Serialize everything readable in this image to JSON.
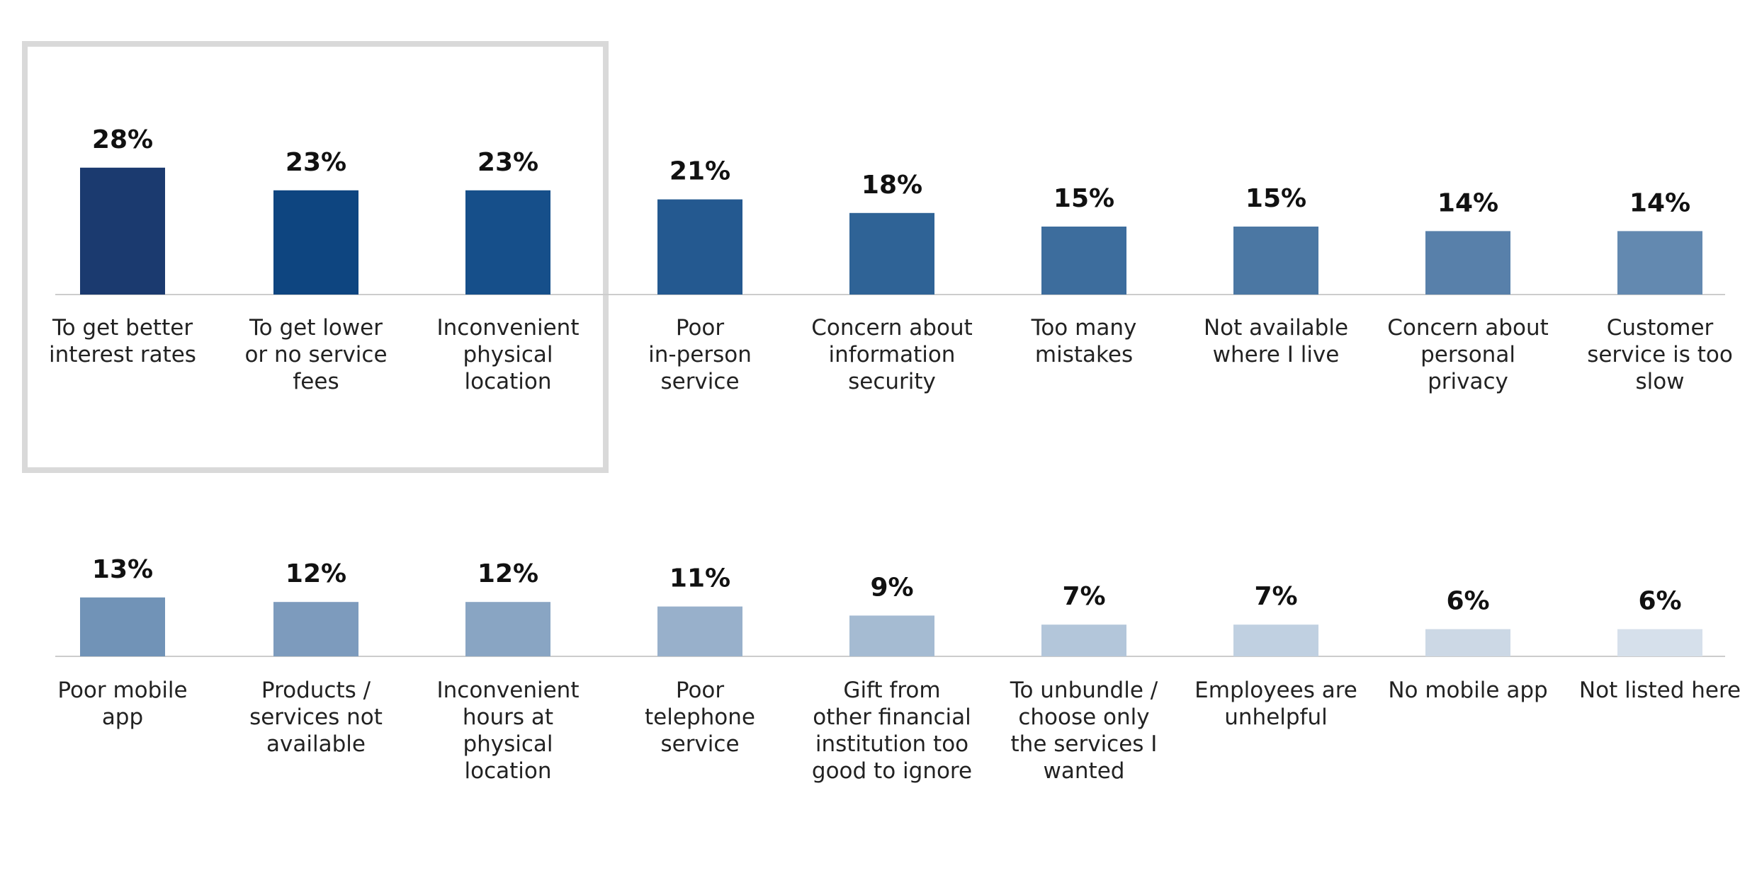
{
  "chart_data": [
    {
      "type": "bar",
      "categories": [
        [
          "To get better",
          "interest rates"
        ],
        [
          "To get lower",
          "or no service",
          "fees"
        ],
        [
          "Inconvenient",
          "physical",
          "location"
        ],
        [
          "Poor",
          "in-person",
          "service"
        ],
        [
          "Concern about",
          "information",
          "security"
        ],
        [
          "Too many",
          "mistakes"
        ],
        [
          "Not available",
          "where I live"
        ],
        [
          "Concern about",
          "personal",
          "privacy"
        ],
        [
          "Customer",
          "service is too",
          "slow"
        ]
      ],
      "values": [
        28,
        23,
        23,
        21,
        18,
        15,
        15,
        14,
        14
      ],
      "value_labels": [
        "28%",
        "23%",
        "23%",
        "21%",
        "18%",
        "15%",
        "15%",
        "14%",
        "14%"
      ],
      "colors": [
        "#1b3a6f",
        "#0e4580",
        "#164f8a",
        "#245990",
        "#2f6396",
        "#3d6d9d",
        "#4b77a3",
        "#5880aa",
        "#6389b0"
      ],
      "highlighted_count": 3,
      "title": "",
      "xlabel": "",
      "ylabel": ""
    },
    {
      "type": "bar",
      "categories": [
        [
          "Poor mobile",
          "app"
        ],
        [
          "Products /",
          "services not",
          "available"
        ],
        [
          "Inconvenient",
          "hours at",
          "physical",
          "location"
        ],
        [
          "Poor",
          "telephone",
          "service"
        ],
        [
          "Gift from",
          "other financial",
          "institution too",
          "good to ignore"
        ],
        [
          "To unbundle /",
          "choose only",
          "the services I",
          "wanted"
        ],
        [
          "Employees are",
          "unhelpful"
        ],
        [
          "No mobile app"
        ],
        [
          "Not listed here"
        ]
      ],
      "values": [
        13,
        12,
        12,
        11,
        9,
        7,
        7,
        6,
        6
      ],
      "value_labels": [
        "13%",
        "12%",
        "12%",
        "11%",
        "9%",
        "7%",
        "7%",
        "6%",
        "6%"
      ],
      "colors": [
        "#7193b7",
        "#7d9bbd",
        "#89a5c3",
        "#98b0cb",
        "#a5bbd2",
        "#b3c6da",
        "#c0d0e1",
        "#ccd8e5",
        "#d6e0eb"
      ],
      "title": "",
      "xlabel": "",
      "ylabel": ""
    }
  ]
}
